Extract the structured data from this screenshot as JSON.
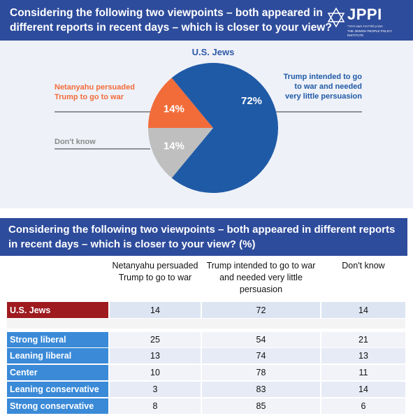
{
  "header": {
    "title": "Considering the following two viewpoints – both appeared in different reports in recent days – which is closer to your view?",
    "logo": "JPPI",
    "logo_hebrew": "המכון למדיניות העם היהודי",
    "logo_english": "THE JEWISH PEOPLE POLICY INSTITUTE"
  },
  "chart_data": {
    "type": "pie",
    "title": "U.S. Jews",
    "categories": [
      "Netanyahu persuaded Trump to go to war",
      "Trump intended to go to war and needed very little persuasion",
      "Don't know"
    ],
    "values": [
      14,
      72,
      14
    ],
    "value_labels": [
      "14%",
      "72%",
      "14%"
    ],
    "colors": [
      "#f26c3a",
      "#1f5aa6",
      "#bfbfbf"
    ]
  },
  "table": {
    "title": "Considering the following two viewpoints – both appeared in different reports in recent days – which is closer to your view? (%)",
    "columns": [
      "Netanyahu persuaded Trump to go to war",
      "Trump intended to go to war and needed very little persuasion",
      "Don't know"
    ],
    "rows": [
      {
        "label": "U.S. Jews",
        "values": [
          14,
          72,
          14
        ]
      },
      {
        "label": "Strong liberal",
        "values": [
          25,
          54,
          21
        ]
      },
      {
        "label": "Leaning liberal",
        "values": [
          13,
          74,
          13
        ]
      },
      {
        "label": "Center",
        "values": [
          10,
          78,
          11
        ]
      },
      {
        "label": "Leaning conservative",
        "values": [
          3,
          83,
          14
        ]
      },
      {
        "label": "Strong conservative",
        "values": [
          8,
          85,
          6
        ]
      }
    ]
  }
}
